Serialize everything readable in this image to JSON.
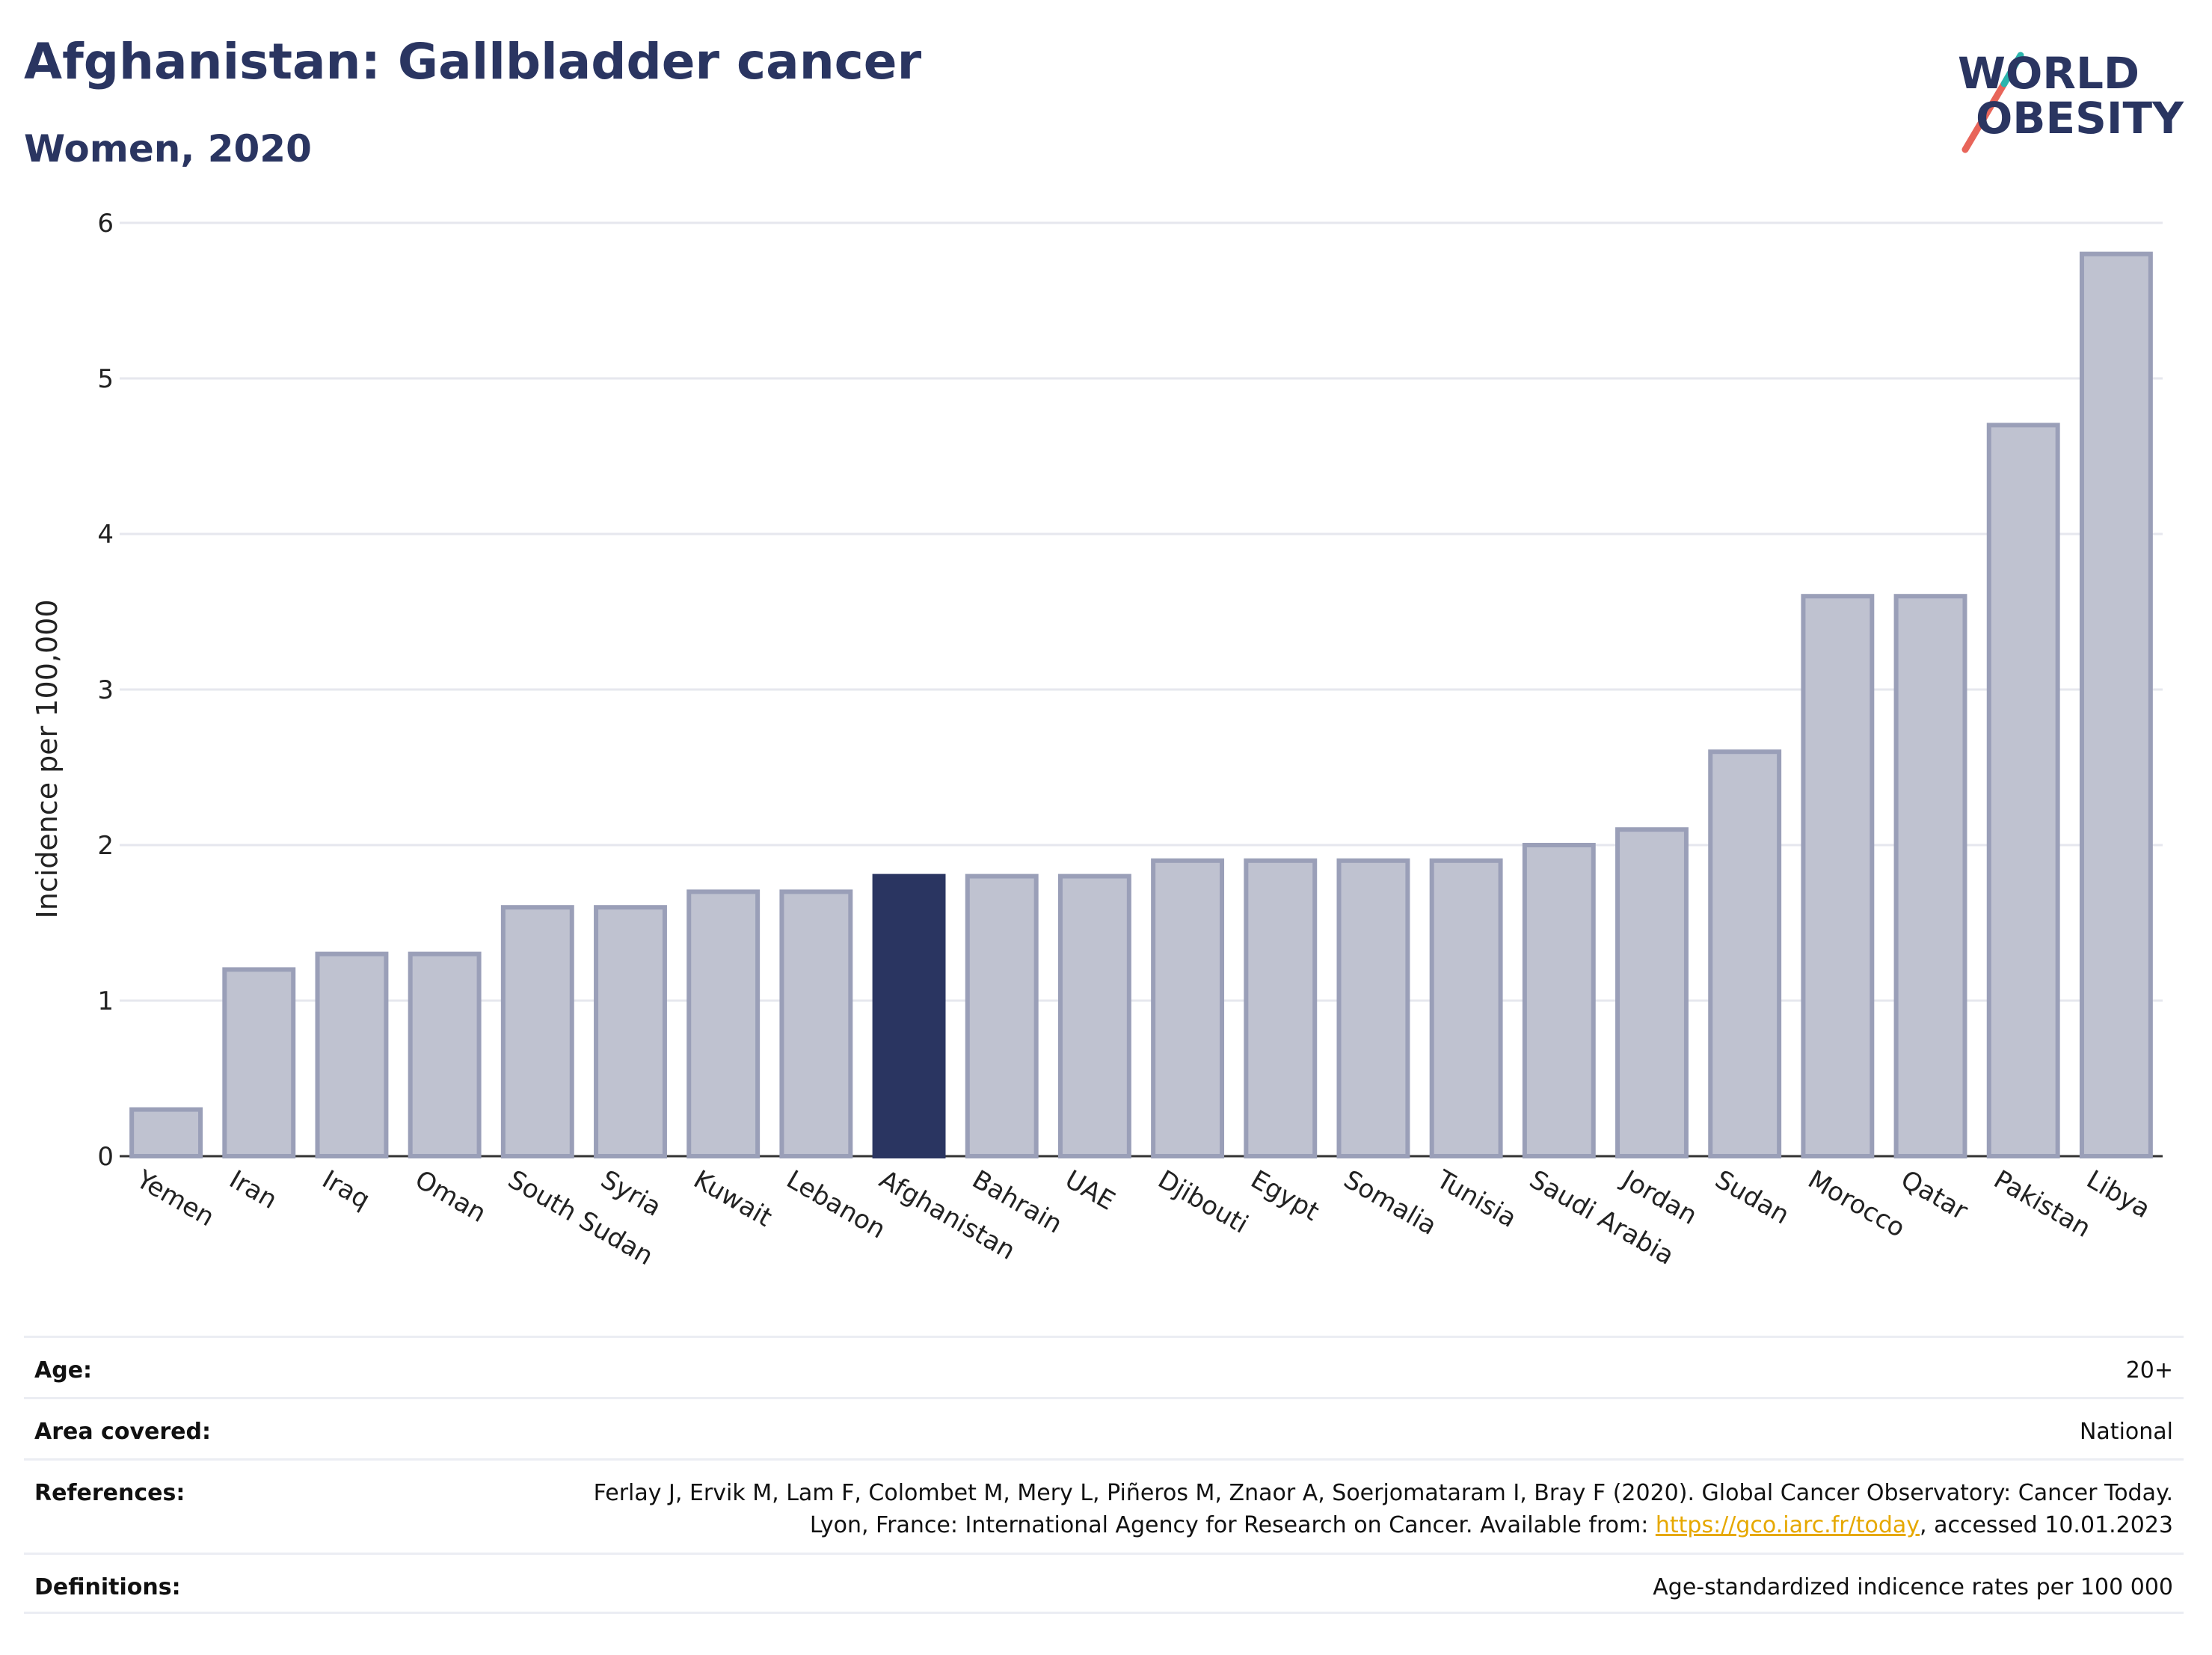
{
  "header": {
    "title": "Afghanistan: Gallbladder cancer",
    "subtitle": "Women, 2020"
  },
  "logo": {
    "line1": "WORLD",
    "line2": "OBESITY",
    "colors": {
      "text": "#2a3561",
      "slash_top": "#2bb5ad",
      "slash_bottom": "#e8655a"
    }
  },
  "chart_data": {
    "type": "bar",
    "categories": [
      "Yemen",
      "Iran",
      "Iraq",
      "Oman",
      "South Sudan",
      "Syria",
      "Kuwait",
      "Lebanon",
      "Afghanistan",
      "Bahrain",
      "UAE",
      "Djibouti",
      "Egypt",
      "Somalia",
      "Tunisia",
      "Saudi Arabia",
      "Jordan",
      "Sudan",
      "Morocco",
      "Qatar",
      "Pakistan",
      "Libya"
    ],
    "values": [
      0.3,
      1.2,
      1.3,
      1.3,
      1.6,
      1.6,
      1.7,
      1.7,
      1.8,
      1.8,
      1.8,
      1.9,
      1.9,
      1.9,
      1.9,
      2.0,
      2.1,
      2.6,
      3.6,
      3.6,
      4.7,
      5.8
    ],
    "highlight": "Afghanistan",
    "ylabel": "Incidence per 100,000",
    "ylim": [
      0,
      6
    ],
    "yticks": [
      "0",
      "1",
      "2",
      "3",
      "4",
      "5",
      "6"
    ],
    "grid": true,
    "colors": {
      "bar": "#bfc2d0",
      "bar_outline": "#9a9fb8",
      "highlight": "#2a3561",
      "grid": "#e6e7ee"
    }
  },
  "info": [
    {
      "key": "Age:",
      "value": "20+"
    },
    {
      "key": "Area covered:",
      "value": "National"
    },
    {
      "key": "References:",
      "value_before": "Ferlay J, Ervik M, Lam F, Colombet M, Mery L, Piñeros M, Znaor A, Soerjomataram I, Bray F (2020). Global Cancer Observatory: Cancer Today. Lyon, France: International Agency for Research on Cancer. Available from: ",
      "link": "https://gco.iarc.fr/today",
      "value_after": ", accessed 10.01.2023"
    },
    {
      "key": "Definitions:",
      "value": "Age-standardized indicence rates per 100 000"
    }
  ]
}
